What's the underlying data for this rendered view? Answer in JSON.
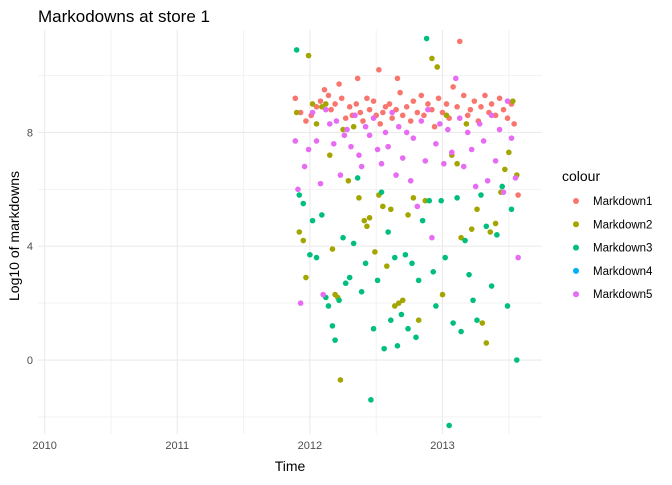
{
  "chart_data": {
    "type": "scatter",
    "title": "Markodowns at store 1",
    "xlabel": "Time",
    "ylabel": "Log10 of markdowns",
    "x_unit": "year",
    "xlim": [
      2009.95,
      2013.75
    ],
    "ylim": [
      -2.6,
      11.6
    ],
    "x_ticks": [
      2010,
      2011,
      2012,
      2013
    ],
    "x_tick_labels": [
      "2010",
      "2011",
      "2012",
      "2013"
    ],
    "y_ticks": [
      0,
      4,
      8
    ],
    "y_tick_labels": [
      "0",
      "4",
      "8"
    ],
    "grid": true,
    "legend": {
      "title": "colour",
      "position": "right"
    },
    "series": [
      {
        "name": "Markdown1",
        "color": "#F8766D",
        "points": [
          [
            2011.89,
            9.2
          ],
          [
            2011.93,
            8.7
          ],
          [
            2011.97,
            8.4
          ],
          [
            2012.01,
            8.6
          ],
          [
            2012.05,
            8.9
          ],
          [
            2012.08,
            9.1
          ],
          [
            2012.11,
            9.5
          ],
          [
            2012.14,
            9.3
          ],
          [
            2012.16,
            8.8
          ],
          [
            2012.19,
            9.0
          ],
          [
            2012.22,
            9.7
          ],
          [
            2012.24,
            9.2
          ],
          [
            2012.27,
            8.5
          ],
          [
            2012.3,
            8.9
          ],
          [
            2012.32,
            8.6
          ],
          [
            2012.35,
            9.0
          ],
          [
            2012.38,
            8.7
          ],
          [
            2012.4,
            8.4
          ],
          [
            2012.43,
            9.2
          ],
          [
            2012.45,
            8.8
          ],
          [
            2012.48,
            9.1
          ],
          [
            2012.5,
            8.6
          ],
          [
            2012.53,
            8.3
          ],
          [
            2012.55,
            8.7
          ],
          [
            2012.57,
            8.9
          ],
          [
            2012.6,
            9.0
          ],
          [
            2012.62,
            8.5
          ],
          [
            2012.65,
            8.8
          ],
          [
            2012.68,
            9.4
          ],
          [
            2012.7,
            8.6
          ],
          [
            2012.73,
            8.9
          ],
          [
            2012.76,
            8.4
          ],
          [
            2012.78,
            9.1
          ],
          [
            2012.81,
            8.7
          ],
          [
            2012.84,
            9.3
          ],
          [
            2012.86,
            8.6
          ],
          [
            2012.89,
            9.0
          ],
          [
            2012.92,
            8.8
          ],
          [
            2012.94,
            8.2
          ],
          [
            2012.97,
            9.2
          ],
          [
            2013.0,
            8.7
          ],
          [
            2013.03,
            9.0
          ],
          [
            2013.05,
            8.5
          ],
          [
            2013.08,
            9.6
          ],
          [
            2013.11,
            8.9
          ],
          [
            2013.13,
            11.2
          ],
          [
            2013.16,
            9.3
          ],
          [
            2013.19,
            8.6
          ],
          [
            2013.21,
            8.8
          ],
          [
            2013.24,
            9.1
          ],
          [
            2013.27,
            8.4
          ],
          [
            2013.29,
            8.9
          ],
          [
            2013.32,
            9.3
          ],
          [
            2013.35,
            8.7
          ],
          [
            2013.37,
            9.0
          ],
          [
            2013.4,
            8.6
          ],
          [
            2013.43,
            9.2
          ],
          [
            2013.46,
            8.8
          ],
          [
            2013.49,
            8.5
          ],
          [
            2013.52,
            9.0
          ],
          [
            2013.54,
            8.3
          ],
          [
            2013.57,
            5.8
          ],
          [
            2012.52,
            10.2
          ],
          [
            2012.66,
            9.9
          ],
          [
            2012.36,
            9.9
          ]
        ]
      },
      {
        "name": "Markdown2",
        "color": "#A3A500",
        "points": [
          [
            2011.9,
            8.7
          ],
          [
            2011.92,
            4.5
          ],
          [
            2011.95,
            4.2
          ],
          [
            2011.97,
            2.9
          ],
          [
            2011.99,
            10.7
          ],
          [
            2012.02,
            9.0
          ],
          [
            2012.05,
            8.3
          ],
          [
            2012.09,
            8.9
          ],
          [
            2012.12,
            9.0
          ],
          [
            2012.15,
            7.2
          ],
          [
            2012.17,
            3.9
          ],
          [
            2012.19,
            2.3
          ],
          [
            2012.21,
            2.2
          ],
          [
            2012.23,
            -0.7
          ],
          [
            2012.25,
            8.1
          ],
          [
            2012.29,
            6.3
          ],
          [
            2012.33,
            8.2
          ],
          [
            2012.37,
            5.7
          ],
          [
            2012.41,
            4.9
          ],
          [
            2012.43,
            4.7
          ],
          [
            2012.45,
            5.0
          ],
          [
            2012.49,
            3.8
          ],
          [
            2012.52,
            5.8
          ],
          [
            2012.55,
            5.4
          ],
          [
            2012.58,
            3.3
          ],
          [
            2012.61,
            5.3
          ],
          [
            2012.64,
            1.9
          ],
          [
            2012.67,
            2.0
          ],
          [
            2012.7,
            2.1
          ],
          [
            2012.74,
            5.1
          ],
          [
            2012.78,
            5.7
          ],
          [
            2012.82,
            1.4
          ],
          [
            2012.87,
            5.6
          ],
          [
            2012.92,
            10.6
          ],
          [
            2012.96,
            10.3
          ],
          [
            2013.0,
            2.3
          ],
          [
            2013.03,
            8.6
          ],
          [
            2013.07,
            7.2
          ],
          [
            2013.11,
            6.9
          ],
          [
            2013.14,
            4.3
          ],
          [
            2013.18,
            8.3
          ],
          [
            2013.22,
            4.6
          ],
          [
            2013.26,
            5.3
          ],
          [
            2013.3,
            1.3
          ],
          [
            2013.33,
            0.6
          ],
          [
            2013.36,
            4.5
          ],
          [
            2013.4,
            4.8
          ],
          [
            2013.44,
            5.9
          ],
          [
            2013.47,
            6.7
          ],
          [
            2013.5,
            7.3
          ],
          [
            2013.53,
            9.1
          ],
          [
            2013.56,
            6.5
          ]
        ]
      },
      {
        "name": "Markdown3",
        "color": "#00BF7D",
        "points": [
          [
            2011.9,
            10.9
          ],
          [
            2011.92,
            5.8
          ],
          [
            2011.95,
            5.5
          ],
          [
            2012.0,
            3.7
          ],
          [
            2012.02,
            4.9
          ],
          [
            2012.05,
            3.6
          ],
          [
            2012.09,
            5.1
          ],
          [
            2012.12,
            2.2
          ],
          [
            2012.14,
            1.9
          ],
          [
            2012.17,
            1.2
          ],
          [
            2012.19,
            0.7
          ],
          [
            2012.22,
            2.1
          ],
          [
            2012.25,
            4.3
          ],
          [
            2012.27,
            2.7
          ],
          [
            2012.3,
            2.9
          ],
          [
            2012.33,
            4.1
          ],
          [
            2012.36,
            6.4
          ],
          [
            2012.39,
            2.4
          ],
          [
            2012.42,
            3.4
          ],
          [
            2012.46,
            -1.4
          ],
          [
            2012.48,
            1.1
          ],
          [
            2012.51,
            2.8
          ],
          [
            2012.54,
            5.9
          ],
          [
            2012.56,
            0.4
          ],
          [
            2012.59,
            4.5
          ],
          [
            2012.61,
            1.4
          ],
          [
            2012.64,
            3.6
          ],
          [
            2012.66,
            0.5
          ],
          [
            2012.69,
            1.6
          ],
          [
            2012.72,
            3.7
          ],
          [
            2012.74,
            1.1
          ],
          [
            2012.77,
            3.4
          ],
          [
            2012.8,
            0.8
          ],
          [
            2012.82,
            2.8
          ],
          [
            2012.85,
            4.9
          ],
          [
            2012.88,
            11.3
          ],
          [
            2012.9,
            5.6
          ],
          [
            2012.93,
            3.1
          ],
          [
            2012.95,
            1.9
          ],
          [
            2012.99,
            5.6
          ],
          [
            2013.02,
            3.6
          ],
          [
            2013.05,
            -2.3
          ],
          [
            2013.08,
            1.3
          ],
          [
            2013.11,
            5.7
          ],
          [
            2013.14,
            1.0
          ],
          [
            2013.17,
            4.2
          ],
          [
            2013.2,
            3.0
          ],
          [
            2013.23,
            2.1
          ],
          [
            2013.26,
            1.4
          ],
          [
            2013.29,
            5.8
          ],
          [
            2013.33,
            4.7
          ],
          [
            2013.37,
            2.6
          ],
          [
            2013.41,
            4.4
          ],
          [
            2013.45,
            6.1
          ],
          [
            2013.49,
            1.9
          ],
          [
            2013.52,
            5.3
          ],
          [
            2013.56,
            0.0
          ]
        ]
      },
      {
        "name": "Markdown4",
        "color": "#00B0F6",
        "points": []
      },
      {
        "name": "Markdown5",
        "color": "#E76BF3",
        "points": [
          [
            2011.89,
            7.7
          ],
          [
            2011.91,
            6.0
          ],
          [
            2011.93,
            2.0
          ],
          [
            2011.96,
            6.8
          ],
          [
            2011.99,
            7.4
          ],
          [
            2012.02,
            8.7
          ],
          [
            2012.05,
            7.7
          ],
          [
            2012.08,
            6.2
          ],
          [
            2012.1,
            2.3
          ],
          [
            2012.12,
            8.8
          ],
          [
            2012.15,
            8.3
          ],
          [
            2012.18,
            7.6
          ],
          [
            2012.2,
            8.4
          ],
          [
            2012.23,
            6.5
          ],
          [
            2012.26,
            7.9
          ],
          [
            2012.28,
            8.1
          ],
          [
            2012.31,
            7.5
          ],
          [
            2012.34,
            8.6
          ],
          [
            2012.37,
            7.2
          ],
          [
            2012.39,
            6.8
          ],
          [
            2012.42,
            8.2
          ],
          [
            2012.45,
            7.9
          ],
          [
            2012.48,
            8.5
          ],
          [
            2012.51,
            7.4
          ],
          [
            2012.54,
            6.9
          ],
          [
            2012.57,
            8.0
          ],
          [
            2012.59,
            7.5
          ],
          [
            2012.62,
            8.7
          ],
          [
            2012.65,
            6.5
          ],
          [
            2012.67,
            8.2
          ],
          [
            2012.7,
            7.1
          ],
          [
            2012.73,
            8.0
          ],
          [
            2012.76,
            6.3
          ],
          [
            2012.78,
            7.8
          ],
          [
            2012.81,
            5.4
          ],
          [
            2012.84,
            8.4
          ],
          [
            2012.87,
            7.0
          ],
          [
            2012.89,
            8.8
          ],
          [
            2012.92,
            4.3
          ],
          [
            2012.95,
            7.6
          ],
          [
            2012.98,
            8.3
          ],
          [
            2013.01,
            6.9
          ],
          [
            2013.04,
            8.1
          ],
          [
            2013.07,
            7.3
          ],
          [
            2013.1,
            9.9
          ],
          [
            2013.13,
            8.5
          ],
          [
            2013.16,
            6.8
          ],
          [
            2013.19,
            8.0
          ],
          [
            2013.22,
            7.4
          ],
          [
            2013.25,
            6.1
          ],
          [
            2013.28,
            8.3
          ],
          [
            2013.31,
            7.7
          ],
          [
            2013.34,
            6.3
          ],
          [
            2013.37,
            8.6
          ],
          [
            2013.4,
            7.0
          ],
          [
            2013.43,
            8.1
          ],
          [
            2013.46,
            5.9
          ],
          [
            2013.49,
            9.1
          ],
          [
            2013.52,
            7.8
          ],
          [
            2013.55,
            6.4
          ],
          [
            2013.57,
            3.6
          ]
        ]
      }
    ]
  }
}
